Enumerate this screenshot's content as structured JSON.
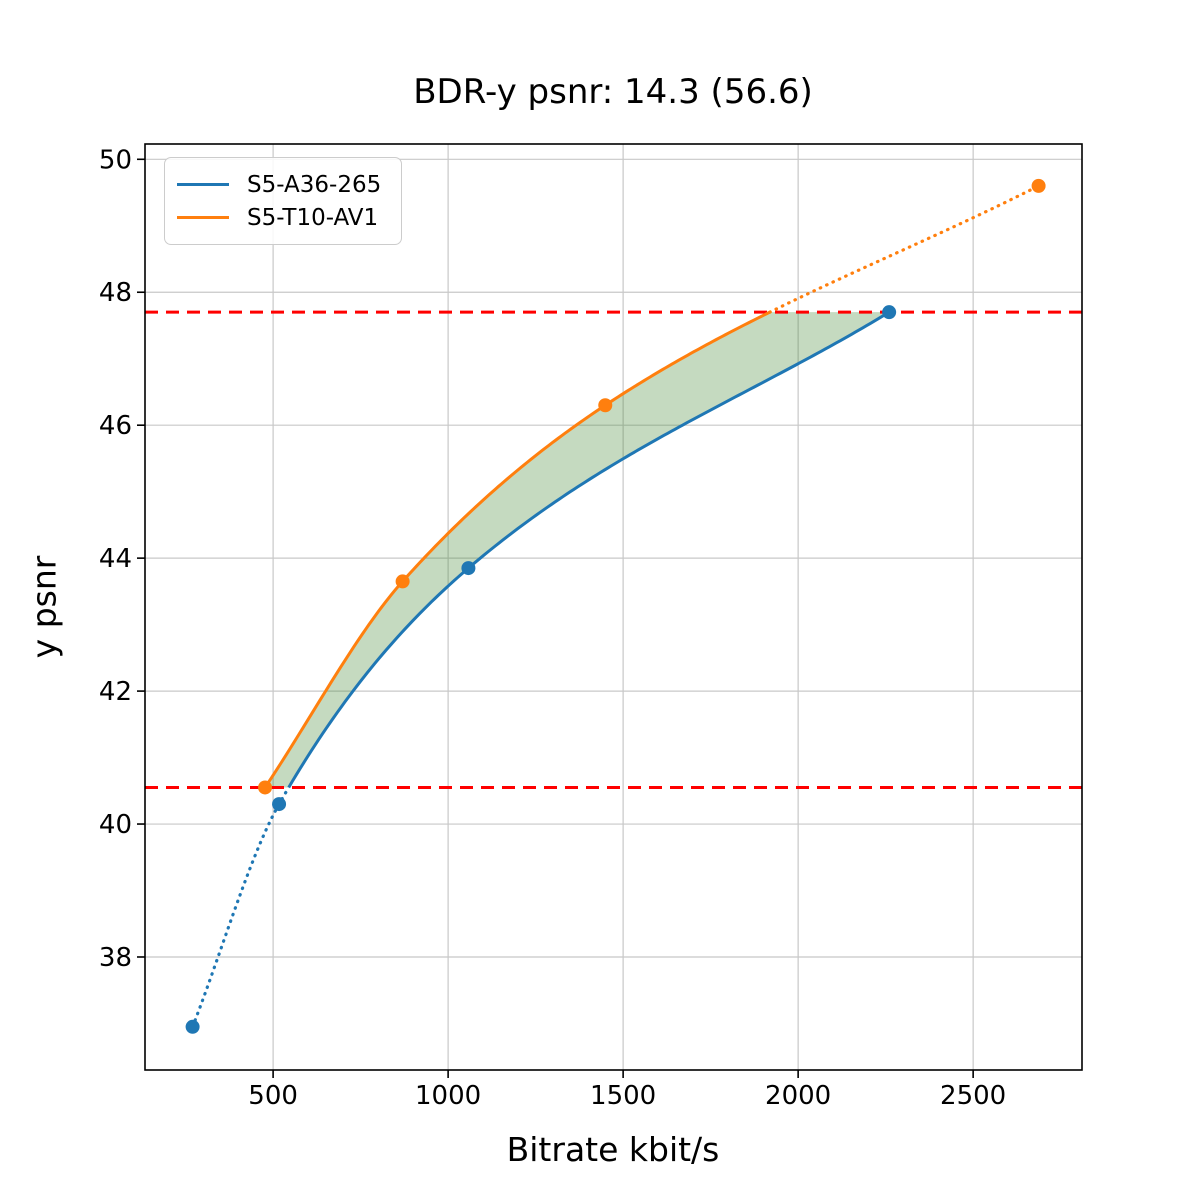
{
  "title": "BDR-y psnr: 14.3 (56.6)",
  "chart_data": {
    "type": "line",
    "title": "BDR-y psnr: 14.3 (56.6)",
    "xlabel": "Bitrate kbit/s",
    "ylabel": "y psnr",
    "xlim": [
      134,
      2811
    ],
    "ylim": [
      36.3,
      50.23
    ],
    "xticks": [
      500,
      1000,
      1500,
      2000,
      2500
    ],
    "yticks": [
      38,
      40,
      42,
      44,
      46,
      48,
      50
    ],
    "grid": true,
    "legend_position": "upper-left",
    "series": [
      {
        "name": "S5-A36-265",
        "color": "#1f77b4",
        "x": [
          270,
          517,
          1058,
          2260
        ],
        "y": [
          36.95,
          40.3,
          43.85,
          47.7
        ]
      },
      {
        "name": "S5-T10-AV1",
        "color": "#ff7f0e",
        "x": [
          477,
          870,
          1449,
          2687
        ],
        "y": [
          40.55,
          43.65,
          46.3,
          49.6
        ]
      }
    ],
    "overlap_lines": {
      "color": "#ff0000",
      "low": 40.55,
      "high": 47.7
    },
    "shade_color": "rgba(76,140,60,0.32)",
    "grid_color": "#c8c8c8",
    "spine_color": "#000000"
  }
}
